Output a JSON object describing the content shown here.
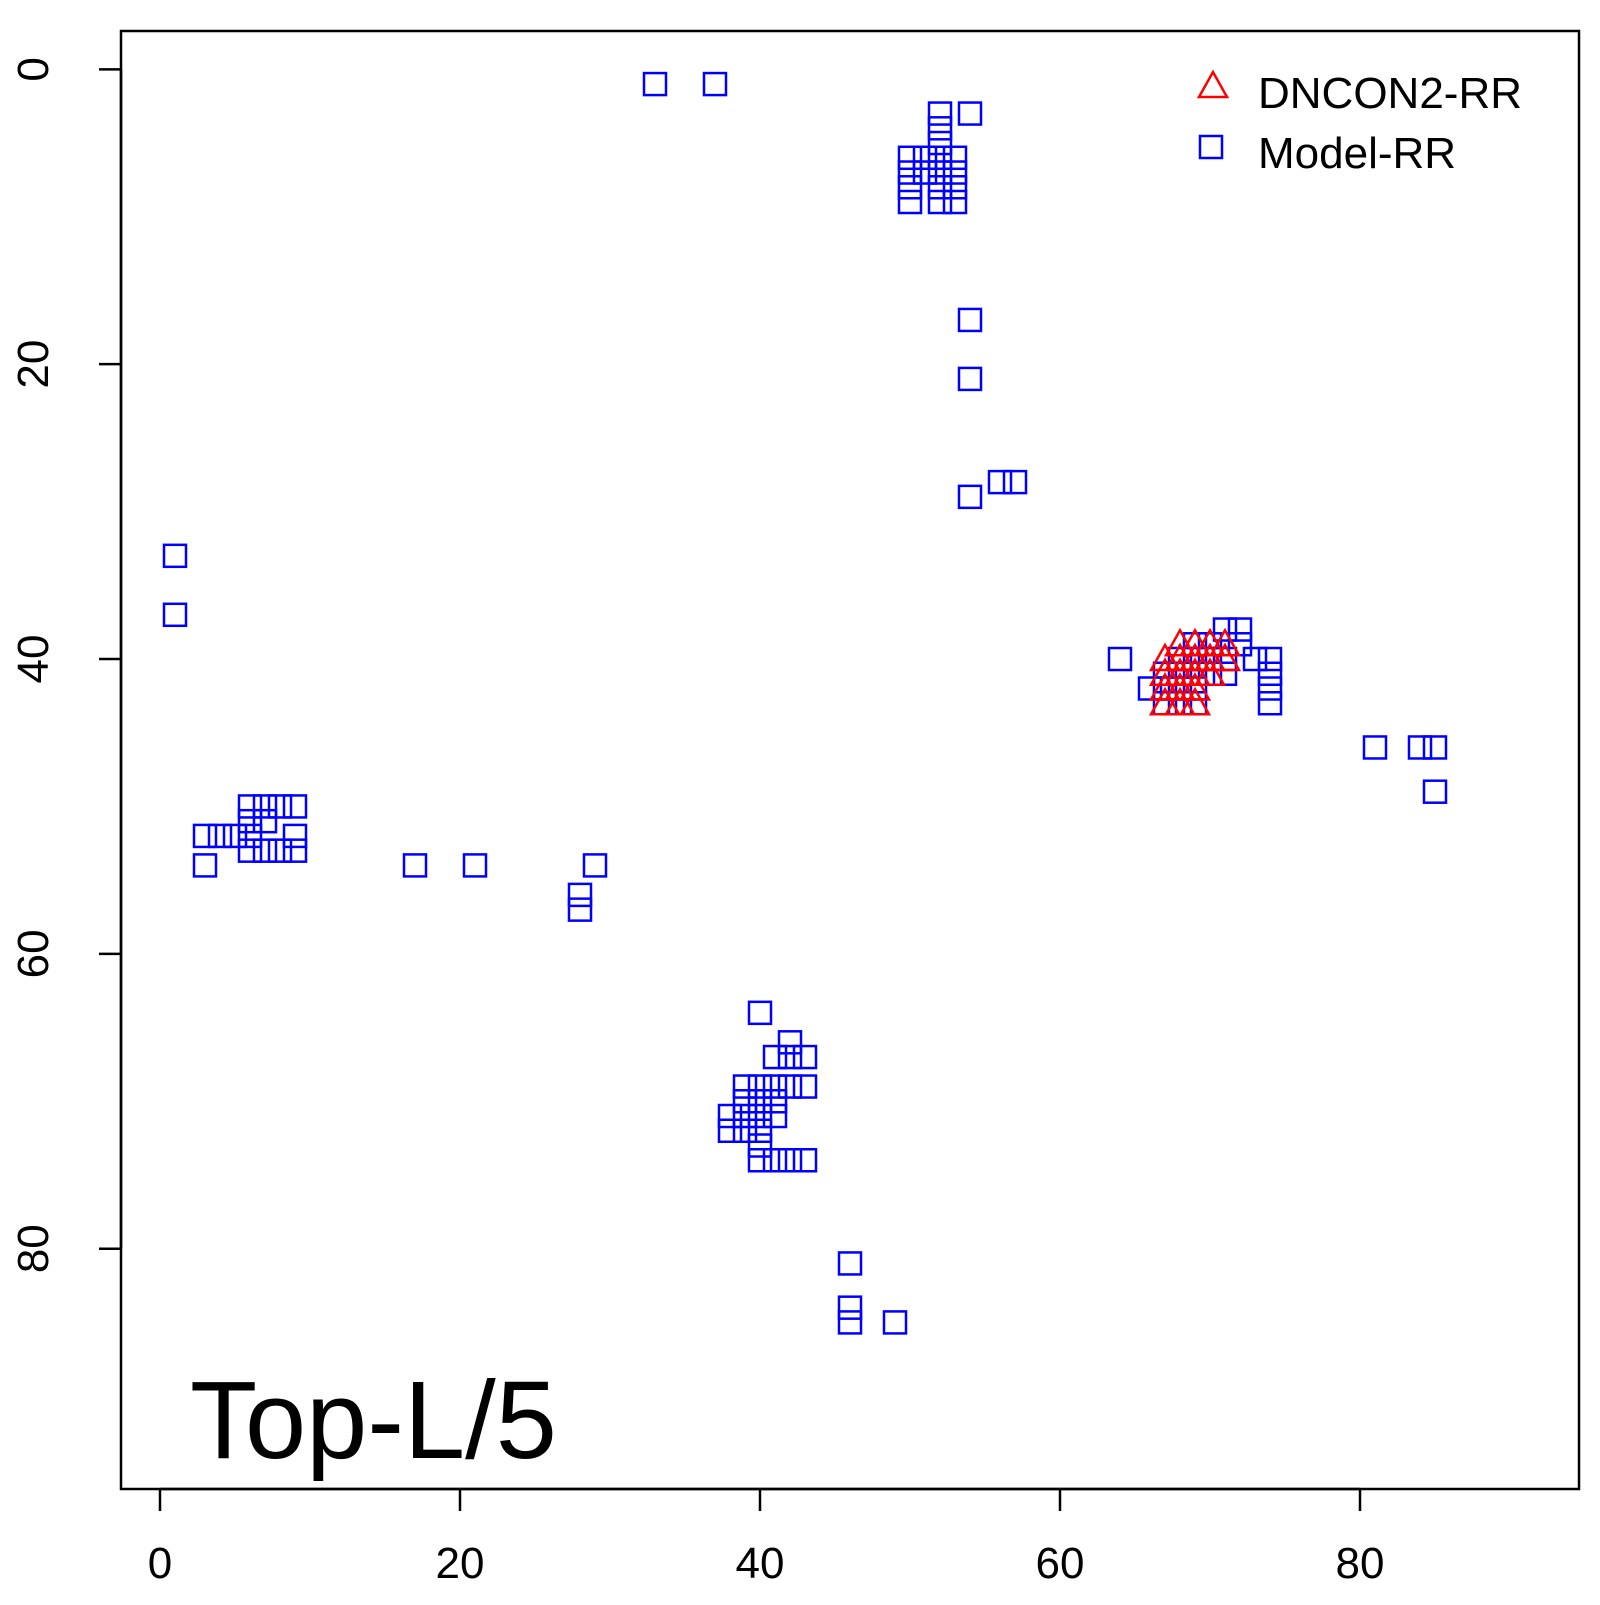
{
  "chart_data": {
    "type": "scatter",
    "title": "",
    "xlabel": "",
    "ylabel": "",
    "annotation": "Top-L/5",
    "xlim": [
      -2.6,
      94.6
    ],
    "ylim": [
      96.3,
      -2.6
    ],
    "y_reversed": true,
    "x_ticks": [
      0,
      20,
      40,
      60,
      80
    ],
    "y_ticks": [
      0,
      20,
      40,
      60,
      80
    ],
    "x_tick_labels": [
      "0",
      "20",
      "40",
      "60",
      "80"
    ],
    "y_tick_labels": [
      "0",
      "20",
      "40",
      "60",
      "80"
    ],
    "grid": false,
    "legend_position": "top-right",
    "series": [
      {
        "name": "DNCON2-RR",
        "marker": "triangle",
        "color": "#ff0000",
        "points": [
          [
            67,
            40
          ],
          [
            67,
            41
          ],
          [
            67,
            42
          ],
          [
            67,
            43
          ],
          [
            68,
            39
          ],
          [
            68,
            40
          ],
          [
            68,
            41
          ],
          [
            68,
            42
          ],
          [
            68,
            43
          ],
          [
            69,
            39
          ],
          [
            69,
            40
          ],
          [
            69,
            41
          ],
          [
            69,
            42
          ],
          [
            69,
            43
          ],
          [
            70,
            39
          ],
          [
            70,
            40
          ],
          [
            70,
            41
          ],
          [
            71,
            39
          ],
          [
            71,
            40
          ]
        ]
      },
      {
        "name": "Model-RR",
        "marker": "square",
        "color": "#0000ff",
        "points": [
          [
            33,
            1
          ],
          [
            37,
            1
          ],
          [
            52,
            3
          ],
          [
            52,
            4
          ],
          [
            52,
            5
          ],
          [
            52,
            6
          ],
          [
            52,
            7
          ],
          [
            52,
            8
          ],
          [
            52,
            9
          ],
          [
            54,
            3
          ],
          [
            50,
            6
          ],
          [
            50,
            7
          ],
          [
            50,
            8
          ],
          [
            50,
            9
          ],
          [
            51,
            6
          ],
          [
            51,
            7
          ],
          [
            53,
            6
          ],
          [
            53,
            7
          ],
          [
            53,
            8
          ],
          [
            53,
            9
          ],
          [
            54,
            17
          ],
          [
            54,
            21
          ],
          [
            54,
            29
          ],
          [
            56,
            28
          ],
          [
            57,
            28
          ],
          [
            1,
            33
          ],
          [
            1,
            37
          ],
          [
            72,
            38
          ],
          [
            71,
            38
          ],
          [
            64,
            40
          ],
          [
            66,
            42
          ],
          [
            67,
            41
          ],
          [
            67,
            42
          ],
          [
            67,
            43
          ],
          [
            68,
            40
          ],
          [
            68,
            41
          ],
          [
            68,
            42
          ],
          [
            68,
            43
          ],
          [
            69,
            39
          ],
          [
            69,
            40
          ],
          [
            69,
            41
          ],
          [
            69,
            42
          ],
          [
            69,
            43
          ],
          [
            70,
            39
          ],
          [
            70,
            40
          ],
          [
            70,
            41
          ],
          [
            71,
            40
          ],
          [
            71,
            41
          ],
          [
            72,
            39
          ],
          [
            73,
            40
          ],
          [
            74,
            40
          ],
          [
            74,
            41
          ],
          [
            74,
            42
          ],
          [
            74,
            43
          ],
          [
            81,
            46
          ],
          [
            84,
            46
          ],
          [
            85,
            46
          ],
          [
            85,
            49
          ],
          [
            6,
            50
          ],
          [
            7,
            50
          ],
          [
            8,
            50
          ],
          [
            9,
            50
          ],
          [
            6,
            51
          ],
          [
            7,
            51
          ],
          [
            3,
            52
          ],
          [
            4,
            52
          ],
          [
            5,
            52
          ],
          [
            6,
            52
          ],
          [
            9,
            52
          ],
          [
            6,
            53
          ],
          [
            7,
            53
          ],
          [
            8,
            53
          ],
          [
            9,
            53
          ],
          [
            3,
            54
          ],
          [
            17,
            54
          ],
          [
            21,
            54
          ],
          [
            29,
            54
          ],
          [
            28,
            56
          ],
          [
            28,
            57
          ],
          [
            40,
            64
          ],
          [
            42,
            66
          ],
          [
            42,
            67
          ],
          [
            41,
            67
          ],
          [
            43,
            67
          ],
          [
            39,
            69
          ],
          [
            40,
            69
          ],
          [
            41,
            69
          ],
          [
            42,
            69
          ],
          [
            43,
            69
          ],
          [
            39,
            70
          ],
          [
            40,
            70
          ],
          [
            41,
            70
          ],
          [
            38,
            71
          ],
          [
            39,
            71
          ],
          [
            40,
            71
          ],
          [
            41,
            71
          ],
          [
            38,
            72
          ],
          [
            39,
            72
          ],
          [
            40,
            72
          ],
          [
            40,
            73
          ],
          [
            40,
            74
          ],
          [
            41,
            74
          ],
          [
            42,
            74
          ],
          [
            43,
            74
          ],
          [
            46,
            81
          ],
          [
            46,
            84
          ],
          [
            46,
            85
          ],
          [
            49,
            85
          ]
        ]
      }
    ]
  }
}
